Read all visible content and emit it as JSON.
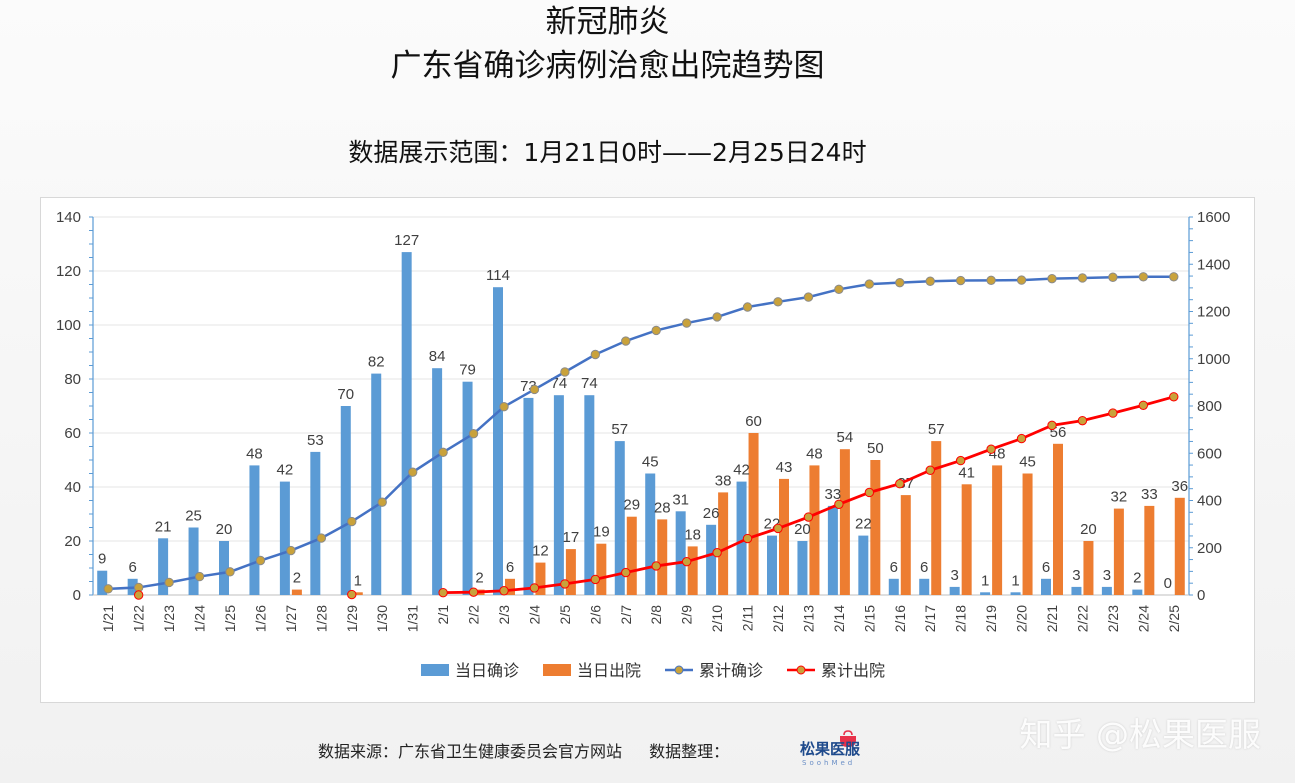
{
  "title_line1": "新冠肺炎",
  "title_line2": "广东省确诊病例治愈出院趋势图",
  "subtitle": "数据展示范围：1月21日0时——2月25日24时",
  "footer": {
    "source": "数据来源：广东省卫生健康委员会官方网站",
    "compiled": "数据整理：",
    "brand_name": "松果医服",
    "brand_en": "SoohMed"
  },
  "watermark": "知乎 @松果医服",
  "colors": {
    "daily_confirmed": "#5b9bd5",
    "daily_discharged": "#ed7d31",
    "cum_confirmed": "#4472c4",
    "cum_discharged": "#ff0000",
    "marker": "#c9a23b",
    "axis": "#5b9bd5"
  },
  "chart_data": {
    "type": "bar",
    "categories": [
      "1/21",
      "1/22",
      "1/23",
      "1/24",
      "1/25",
      "1/26",
      "1/27",
      "1/28",
      "1/29",
      "1/30",
      "1/31",
      "2/1",
      "2/2",
      "2/3",
      "2/4",
      "2/5",
      "2/6",
      "2/7",
      "2/8",
      "2/9",
      "2/10",
      "2/11",
      "2/12",
      "2/13",
      "2/14",
      "2/15",
      "2/16",
      "2/17",
      "2/18",
      "2/19",
      "2/20",
      "2/21",
      "2/22",
      "2/23",
      "2/24",
      "2/25"
    ],
    "left_axis": {
      "ylim": [
        0,
        140
      ],
      "ticks": [
        0,
        20,
        40,
        60,
        80,
        100,
        120,
        140
      ]
    },
    "right_axis": {
      "ylim": [
        0,
        1600
      ],
      "ticks": [
        0,
        200,
        400,
        600,
        800,
        1000,
        1200,
        1400,
        1600
      ]
    },
    "grid": true,
    "legend_position": "bottom",
    "series": [
      {
        "name": "当日确诊",
        "type": "bar",
        "axis": "left",
        "values": [
          9,
          6,
          21,
          25,
          20,
          48,
          42,
          53,
          70,
          82,
          127,
          84,
          79,
          114,
          73,
          74,
          74,
          57,
          45,
          31,
          26,
          42,
          22,
          20,
          33,
          22,
          6,
          6,
          3,
          1,
          1,
          6,
          3,
          3,
          2,
          0
        ],
        "labels": [
          "9",
          "6",
          "21",
          "25",
          "20",
          "48",
          "42",
          "53",
          "70",
          "82",
          "127",
          "84",
          "79",
          "114",
          "73",
          "74",
          "74",
          "57",
          "45",
          "31",
          "26",
          "42",
          "22",
          "20",
          "33",
          "22",
          "6",
          "6",
          "3",
          "1",
          "1",
          "6",
          "3",
          "3",
          "2",
          "0"
        ]
      },
      {
        "name": "当日出院",
        "type": "bar",
        "axis": "left",
        "values": [
          0,
          0,
          0,
          0,
          0,
          0,
          2,
          0,
          1,
          0,
          0,
          0,
          2,
          6,
          12,
          17,
          19,
          29,
          28,
          18,
          38,
          60,
          43,
          48,
          54,
          50,
          37,
          57,
          41,
          48,
          45,
          56,
          20,
          32,
          33,
          36
        ],
        "labels": [
          "",
          "",
          "",
          "",
          "",
          "",
          "2",
          "",
          "1",
          "",
          "",
          "",
          "2",
          "6",
          "12",
          "17",
          "19",
          "29",
          "28",
          "18",
          "38",
          "60",
          "43",
          "48",
          "54",
          "50",
          "37",
          "57",
          "41",
          "48",
          "45",
          "56",
          "20",
          "32",
          "33",
          "36"
        ]
      },
      {
        "name": "累计确诊",
        "type": "line",
        "axis": "right",
        "values": [
          26,
          32,
          53,
          78,
          98,
          146,
          188,
          241,
          311,
          393,
          520,
          604,
          683,
          797,
          870,
          944,
          1018,
          1075,
          1120,
          1151,
          1177,
          1219,
          1241,
          1261,
          1294,
          1316,
          1322,
          1328,
          1331,
          1332,
          1333,
          1339,
          1342,
          1345,
          1347,
          1347
        ]
      },
      {
        "name": "累计出院",
        "type": "line",
        "axis": "right",
        "values": [
          0,
          0,
          0,
          0,
          0,
          0,
          0,
          0,
          2,
          0,
          0,
          10,
          12,
          18,
          30,
          47,
          66,
          95,
          123,
          141,
          179,
          239,
          282,
          330,
          384,
          434,
          471,
          528,
          569,
          617,
          662,
          718,
          738,
          770,
          803,
          839
        ]
      }
    ]
  }
}
